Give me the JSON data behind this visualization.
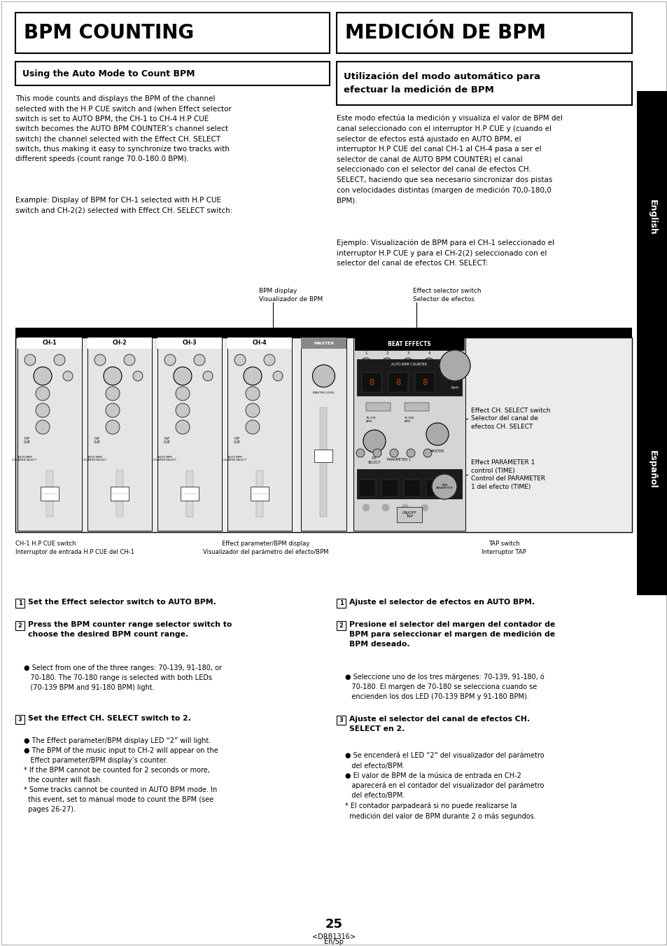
{
  "bg_color": "#ffffff",
  "page_width": 9.54,
  "page_height": 13.51,
  "title_left": "BPM COUNTING",
  "title_right": "MEDICIÓN DE BPM",
  "subtitle_left": "Using the Auto Mode to Count BPM",
  "subtitle_right": "Utilización del modo automático para\nefectuar la medición de BPM",
  "body_left_1": "This mode counts and displays the BPM of the channel\nselected with the H.P CUE switch and (when Effect selector\nswitch is set to AUTO BPM, the CH-1 to CH-4 H.P CUE\nswitch becomes the AUTO BPM COUNTER’s channel select\nswitch) the channel selected with the Effect CH. SELECT\nswitch, thus making it easy to synchronize two tracks with\ndifferent speeds (count range 70.0-180.0 BPM).",
  "body_left_2": "Example: Display of BPM for CH-1 selected with H.P CUE\nswitch and CH-2(2) selected with Effect CH. SELECT switch:",
  "body_right_1": "Este modo efectúa la medición y visualiza el valor de BPM del\ncanal seleccionado con el interruptor H.P CUE y (cuando el\nselector de efectos está ajustado en AUTO BPM, el\ninterruptor H.P CUE del canal CH-1 al CH-4 pasa a ser el\nselector de canal de AUTO BPM COUNTER) el canal\nseleccionado con el selector del canal de efectos CH.\nSELECT, haciendo que sea necesario sincronizar dos pistas\ncon velocidades distintas (margen de medición 70,0-180,0\nBPM).",
  "body_right_2": "Ejemplo: Visualización de BPM para el CH-1 seleccionado el\ninterruptor H.P CUE y para el CH-2(2) seleccionado con el\nselector del canal de efectos CH. SELECT:",
  "diagram_label_bpm": "BPM display\nVisualizador de BPM",
  "diagram_label_effect": "Effect selector switch\nSelector de efectos",
  "diagram_label_ch_select": "Effect CH. SELECT switch\nSelector del canal de\nefectos CH. SELECT",
  "diagram_label_param": "Effect PARAMETER 1\ncontrol (TIME)\nControl del PARAMETER\n1 del efecto (TIME)",
  "diagram_label_ch1": "CH-1 H.P CUE switch\nInterruptor de entrada H.P CUE del CH-1",
  "diagram_label_effect_bpm": "Effect parameter/BPM display\nVisualizador del parámetro del efecto/BPM",
  "diagram_label_tap": "TAP switch\nInterruptor TAP",
  "step2_left_body": "● Select from one of the three ranges: 70-139, 91-180, or\n   70-180. The 70-180 range is selected with both LEDs\n   (70-139 BPM and 91-180 BPM) light.",
  "step3_left_body": "● The Effect parameter/BPM display LED “2” will light.\n● The BPM of the music input to CH-2 will appear on the\n   Effect parameter/BPM display’s counter.\n* If the BPM cannot be counted for 2 seconds or more,\n  the counter will flash.\n* Some tracks cannot be counted in AUTO BPM mode. In\n  this event, set to manual mode to count the BPM (see\n  pages 26-27).",
  "step2_right_body": "● Seleccione uno de los tres márgenes: 70-139, 91-180, ó\n   70-180. El margen de 70-180 se selecciona cuando se\n   encienden los dos LED (70-139 BPM y 91-180 BPM).",
  "step3_right_body": "● Se encenderá el LED “2” del visualizador del parámetro\n   del efecto/BPM.\n● El valor de BPM de la música de entrada en CH-2\n   aparecerá en el contador del visualizador del parámetro\n   del efecto/BPM.\n* El contador parpadeará si no puede realizarse la\n  medición del valor de BPM durante 2 o más segundos.",
  "page_num": "25",
  "page_code": "<DRB1316>\nEn/Sp",
  "sidebar_english": "English",
  "sidebar_espanol": "Español"
}
